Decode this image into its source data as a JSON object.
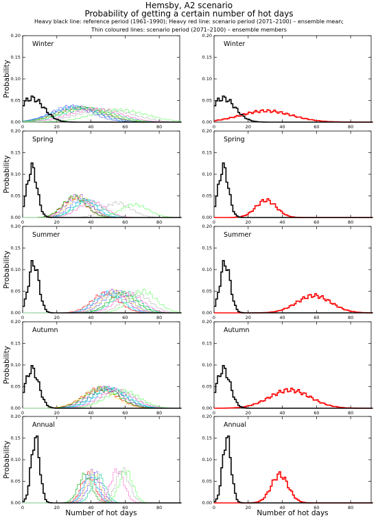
{
  "header": {
    "title": "Hemsby, A2 scenario",
    "subtitle": "Probability of getting a certain number of hot days",
    "note1": "Heavy black line: reference period (1961–1990); Heavy red line: scenario period (2071–2100) – ensemble mean;",
    "note2": "Thin coloured lines: scenario period (2071–2100) – ensemble members"
  },
  "axes": {
    "ylabel": "Probability",
    "xlabel": "Number of hot days",
    "xticks": [
      0,
      20,
      40,
      60,
      80
    ],
    "yticks": [
      "0.00",
      "0.05",
      "0.10",
      "0.15",
      "0.20"
    ],
    "xlim": [
      0,
      92
    ],
    "ylim": [
      0,
      0.2
    ]
  },
  "colors": {
    "reference": "#000000",
    "ensemble_mean": "#ff0000",
    "members": [
      "#ff0000",
      "#9a3dd6",
      "#0000ff",
      "#00aa00",
      "#00c8ff",
      "#ffcc00",
      "#00cc88",
      "#ff66cc",
      "#888888",
      "#66ff66"
    ]
  },
  "chart_data": [
    {
      "type": "line",
      "panel": "left",
      "season": "Winter",
      "reference": {
        "peak": 5,
        "height": 0.055,
        "width": 7
      },
      "ensemble_mean": null,
      "members": [
        {
          "peak": 30,
          "height": 0.035,
          "width": 13
        },
        {
          "peak": 32,
          "height": 0.034,
          "width": 14
        },
        {
          "peak": 28,
          "height": 0.036,
          "width": 12
        },
        {
          "peak": 34,
          "height": 0.033,
          "width": 14
        },
        {
          "peak": 30,
          "height": 0.035,
          "width": 13
        },
        {
          "peak": 36,
          "height": 0.032,
          "width": 15
        },
        {
          "peak": 38,
          "height": 0.031,
          "width": 15
        },
        {
          "peak": 42,
          "height": 0.03,
          "width": 15
        },
        {
          "peak": 48,
          "height": 0.029,
          "width": 16
        },
        {
          "peak": 56,
          "height": 0.028,
          "width": 16
        }
      ]
    },
    {
      "type": "line",
      "panel": "right",
      "season": "Winter",
      "reference": {
        "peak": 5,
        "height": 0.055,
        "width": 7
      },
      "ensemble_mean": {
        "peak": 30,
        "height": 0.026,
        "width": 15
      },
      "members": []
    },
    {
      "type": "line",
      "panel": "left",
      "season": "Spring",
      "reference": {
        "peak": 5,
        "height": 0.115,
        "width": 3
      },
      "ensemble_mean": null,
      "members": [
        {
          "peak": 30,
          "height": 0.045,
          "width": 7
        },
        {
          "peak": 32,
          "height": 0.05,
          "width": 7
        },
        {
          "peak": 34,
          "height": 0.042,
          "width": 7
        },
        {
          "peak": 30,
          "height": 0.048,
          "width": 7
        },
        {
          "peak": 36,
          "height": 0.04,
          "width": 7
        },
        {
          "peak": 33,
          "height": 0.047,
          "width": 7
        },
        {
          "peak": 38,
          "height": 0.038,
          "width": 8
        },
        {
          "peak": 40,
          "height": 0.036,
          "width": 8
        },
        {
          "peak": 55,
          "height": 0.034,
          "width": 8
        },
        {
          "peak": 65,
          "height": 0.03,
          "width": 8
        }
      ]
    },
    {
      "type": "line",
      "panel": "right",
      "season": "Spring",
      "reference": {
        "peak": 5,
        "height": 0.115,
        "width": 3
      },
      "ensemble_mean": {
        "peak": 30,
        "height": 0.04,
        "width": 6
      },
      "members": []
    },
    {
      "type": "line",
      "panel": "left",
      "season": "Summer",
      "reference": {
        "peak": 6,
        "height": 0.115,
        "width": 3
      },
      "ensemble_mean": null,
      "members": [
        {
          "peak": 48,
          "height": 0.045,
          "width": 8
        },
        {
          "peak": 52,
          "height": 0.05,
          "width": 8
        },
        {
          "peak": 55,
          "height": 0.048,
          "width": 8
        },
        {
          "peak": 58,
          "height": 0.045,
          "width": 8
        },
        {
          "peak": 50,
          "height": 0.046,
          "width": 8
        },
        {
          "peak": 54,
          "height": 0.049,
          "width": 8
        },
        {
          "peak": 60,
          "height": 0.046,
          "width": 8
        },
        {
          "peak": 62,
          "height": 0.044,
          "width": 8
        },
        {
          "peak": 66,
          "height": 0.045,
          "width": 8
        },
        {
          "peak": 70,
          "height": 0.05,
          "width": 8
        }
      ]
    },
    {
      "type": "line",
      "panel": "right",
      "season": "Summer",
      "reference": {
        "peak": 6,
        "height": 0.115,
        "width": 3
      },
      "ensemble_mean": {
        "peak": 58,
        "height": 0.04,
        "width": 10
      },
      "members": []
    },
    {
      "type": "line",
      "panel": "left",
      "season": "Autumn",
      "reference": {
        "peak": 5,
        "height": 0.09,
        "width": 4
      },
      "ensemble_mean": null,
      "members": [
        {
          "peak": 45,
          "height": 0.045,
          "width": 10
        },
        {
          "peak": 48,
          "height": 0.047,
          "width": 10
        },
        {
          "peak": 50,
          "height": 0.044,
          "width": 10
        },
        {
          "peak": 46,
          "height": 0.046,
          "width": 10
        },
        {
          "peak": 52,
          "height": 0.043,
          "width": 10
        },
        {
          "peak": 44,
          "height": 0.042,
          "width": 10
        },
        {
          "peak": 50,
          "height": 0.045,
          "width": 10
        },
        {
          "peak": 54,
          "height": 0.042,
          "width": 10
        },
        {
          "peak": 56,
          "height": 0.04,
          "width": 10
        },
        {
          "peak": 58,
          "height": 0.04,
          "width": 10
        }
      ]
    },
    {
      "type": "line",
      "panel": "right",
      "season": "Autumn",
      "reference": {
        "peak": 5,
        "height": 0.09,
        "width": 4
      },
      "ensemble_mean": {
        "peak": 44,
        "height": 0.042,
        "width": 12
      },
      "members": []
    },
    {
      "type": "line",
      "panel": "left",
      "season": "Annual",
      "reference": {
        "peak": 7,
        "height": 0.15,
        "width": 2.5
      },
      "ensemble_mean": null,
      "members": [
        {
          "peak": 38,
          "height": 0.065,
          "width": 4
        },
        {
          "peak": 40,
          "height": 0.07,
          "width": 4
        },
        {
          "peak": 42,
          "height": 0.068,
          "width": 4
        },
        {
          "peak": 36,
          "height": 0.064,
          "width": 4
        },
        {
          "peak": 39,
          "height": 0.066,
          "width": 4
        },
        {
          "peak": 41,
          "height": 0.069,
          "width": 4
        },
        {
          "peak": 44,
          "height": 0.062,
          "width": 4
        },
        {
          "peak": 55,
          "height": 0.075,
          "width": 4
        },
        {
          "peak": 58,
          "height": 0.076,
          "width": 4
        },
        {
          "peak": 60,
          "height": 0.074,
          "width": 4
        }
      ]
    },
    {
      "type": "line",
      "panel": "right",
      "season": "Annual",
      "reference": {
        "peak": 7,
        "height": 0.15,
        "width": 2.5
      },
      "ensemble_mean": {
        "peak": 38,
        "height": 0.065,
        "width": 5
      },
      "members": []
    }
  ]
}
